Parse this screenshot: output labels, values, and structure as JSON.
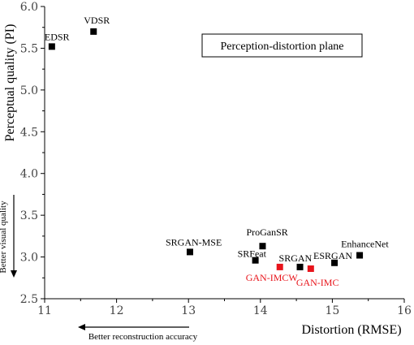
{
  "chart_data": {
    "type": "scatter",
    "title": "Perception-distortion plane",
    "xlabel": "Distortion (RMSE)",
    "ylabel": "Perceptual quality (PI)",
    "xlim": [
      11,
      16
    ],
    "ylim": [
      2.5,
      6.0
    ],
    "xticks": [
      "11",
      "12",
      "13",
      "14",
      "15",
      "16"
    ],
    "yticks": [
      "2.5",
      "3.0",
      "3.5",
      "4.0",
      "4.5",
      "5.0",
      "5.5",
      "6.0"
    ],
    "grid": false,
    "colors": {
      "baseline": "#000000",
      "proposed": "#e8141b"
    },
    "points": [
      {
        "name": "EDSR",
        "x": 11.1,
        "y": 5.52,
        "group": "baseline"
      },
      {
        "name": "VDSR",
        "x": 11.68,
        "y": 5.7,
        "group": "baseline"
      },
      {
        "name": "SRGAN-MSE",
        "x": 13.02,
        "y": 3.06,
        "group": "baseline"
      },
      {
        "name": "ProGanSR",
        "x": 14.03,
        "y": 3.13,
        "group": "baseline"
      },
      {
        "name": "SRFeat",
        "x": 13.93,
        "y": 2.96,
        "group": "baseline"
      },
      {
        "name": "SRGAN",
        "x": 14.55,
        "y": 2.88,
        "group": "baseline"
      },
      {
        "name": "ESRGAN",
        "x": 15.03,
        "y": 2.93,
        "group": "baseline"
      },
      {
        "name": "EnhanceNet",
        "x": 15.38,
        "y": 3.02,
        "group": "baseline"
      },
      {
        "name": "GAN-IMCW",
        "x": 14.27,
        "y": 2.88,
        "group": "proposed"
      },
      {
        "name": "GAN-IMC",
        "x": 14.7,
        "y": 2.86,
        "group": "proposed"
      }
    ],
    "annotations": {
      "better_visual": "Better visual quality",
      "better_reconstruction": "Better reconstruction accuracy"
    }
  }
}
